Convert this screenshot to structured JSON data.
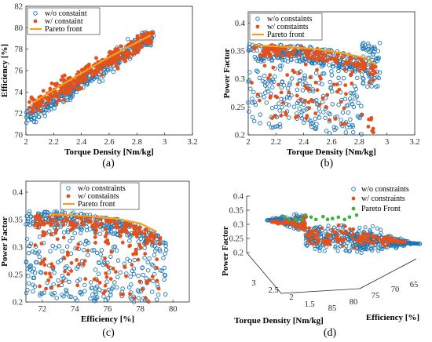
{
  "colors": {
    "wo": "#1f77b4",
    "wi": "#e2511d",
    "pareto": "#f4a21d",
    "pareto3d": "#3cb043"
  },
  "chart_data": [
    {
      "id": "a",
      "type": "scatter",
      "caption": "(a)",
      "xlabel": "Torque Density [Nm/kg]",
      "ylabel": "Efficiency [%]",
      "xlim": [
        2,
        3.2
      ],
      "ylim": [
        70,
        82
      ],
      "xticks": [
        "2",
        "2.2",
        "2.4",
        "2.6",
        "2.8",
        "3",
        "3.2"
      ],
      "yticks": [
        "70",
        "72",
        "74",
        "76",
        "78",
        "80",
        "82"
      ],
      "legend_position": "top-left",
      "legend": [
        "w/o constaint",
        "w/ constaint",
        "Pareto front"
      ],
      "band": {
        "x_range": [
          2.0,
          2.92
        ],
        "y_at_min": 71.5,
        "y_at_max": 79.3,
        "spread": 1.6
      },
      "pareto": [
        [
          2.05,
          73.0
        ],
        [
          2.3,
          75.0
        ],
        [
          2.55,
          76.9
        ],
        [
          2.75,
          78.3
        ],
        [
          2.9,
          79.3
        ]
      ]
    },
    {
      "id": "b",
      "type": "scatter",
      "caption": "(b)",
      "xlabel": "Torque Density [Nm/kg]",
      "ylabel": "Power Factor",
      "xlim": [
        2,
        3.2
      ],
      "ylim": [
        0.2,
        0.42
      ],
      "xticks": [
        "2",
        "2.2",
        "2.4",
        "2.6",
        "2.8",
        "3",
        "3.2"
      ],
      "yticks": [
        "0.2",
        "0.25",
        "0.3",
        "0.35",
        "0.4"
      ],
      "legend_position": "top-left",
      "legend": [
        "w/o constaints",
        "w/ constaints",
        "Pareto front"
      ],
      "pareto": [
        [
          2.05,
          0.36
        ],
        [
          2.3,
          0.357
        ],
        [
          2.5,
          0.353
        ],
        [
          2.7,
          0.345
        ],
        [
          2.85,
          0.337
        ],
        [
          2.92,
          0.325
        ]
      ]
    },
    {
      "id": "c",
      "type": "scatter",
      "caption": "(c)",
      "xlabel": "Efficiency [%]",
      "ylabel": "Power Factor",
      "xlim": [
        71,
        81
      ],
      "ylim": [
        0.2,
        0.42
      ],
      "xticks": [
        "72",
        "74",
        "76",
        "78",
        "80"
      ],
      "yticks": [
        "0.2",
        "0.25",
        "0.3",
        "0.35",
        "0.4"
      ],
      "legend_position": "top-center",
      "legend": [
        "w/o constraints",
        "w/ constaints",
        "Pareto front"
      ],
      "pareto": [
        [
          72.5,
          0.36
        ],
        [
          74.5,
          0.357
        ],
        [
          76.5,
          0.352
        ],
        [
          78,
          0.343
        ],
        [
          79,
          0.328
        ]
      ]
    },
    {
      "id": "d",
      "type": "scatter",
      "caption": "(d)",
      "projection": "3d",
      "xlabel": "Torque Density [Nm/kg]",
      "ylabel": "Efficiency [%]",
      "zlabel": "Power Factor",
      "xticks": [
        "3",
        "2.5",
        "2",
        "1.5"
      ],
      "yticks": [
        "85",
        "80",
        "75",
        "70",
        "65"
      ],
      "zticks": [
        "0.2",
        "0.25",
        "0.3",
        "0.35",
        "0.4"
      ],
      "legend_position": "top-right",
      "legend": [
        "w/o constraints",
        "w/ constraints",
        "Pareto Front"
      ]
    }
  ]
}
